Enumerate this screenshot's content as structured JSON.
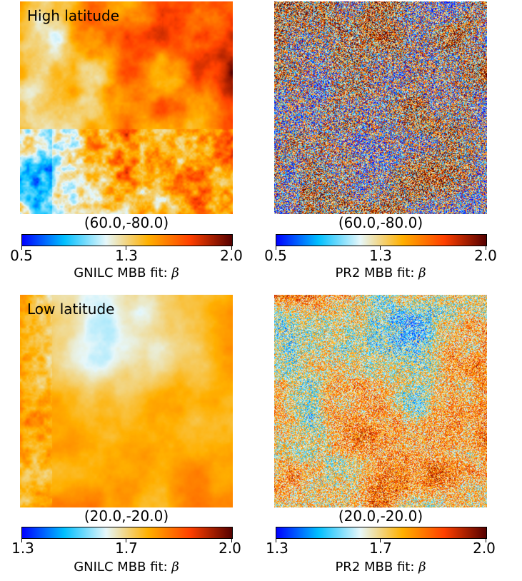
{
  "panels": [
    {
      "region_label": "High latitude",
      "coord": "(60.0,-80.0)",
      "colorbar": {
        "min": "0.5",
        "mid": "1.3",
        "max": "2.0"
      },
      "colorbar_label": "GNILC MBB fit:",
      "symbol": "β",
      "texture": "smooth-hot"
    },
    {
      "region_label": "",
      "coord": "(60.0,-80.0)",
      "colorbar": {
        "min": "0.5",
        "mid": "1.3",
        "max": "2.0"
      },
      "colorbar_label": "PR2 MBB fit:",
      "symbol": "β",
      "texture": "noisy-cyan-red"
    },
    {
      "region_label": "Low latitude",
      "coord": "(20.0,-20.0)",
      "colorbar": {
        "min": "1.3",
        "mid": "1.7",
        "max": "2.0"
      },
      "colorbar_label": "GNILC MBB fit:",
      "symbol": "β",
      "texture": "smooth-cyan-peach"
    },
    {
      "region_label": "",
      "coord": "(20.0,-20.0)",
      "colorbar": {
        "min": "1.3",
        "mid": "1.7",
        "max": "2.0"
      },
      "colorbar_label": "PR2 MBB fit:",
      "symbol": "β",
      "texture": "noisy-blue-orange"
    }
  ],
  "colormap": [
    "#0000ff",
    "#00bfff",
    "#e6f7fa",
    "#ffb000",
    "#ff4000",
    "#550000"
  ]
}
